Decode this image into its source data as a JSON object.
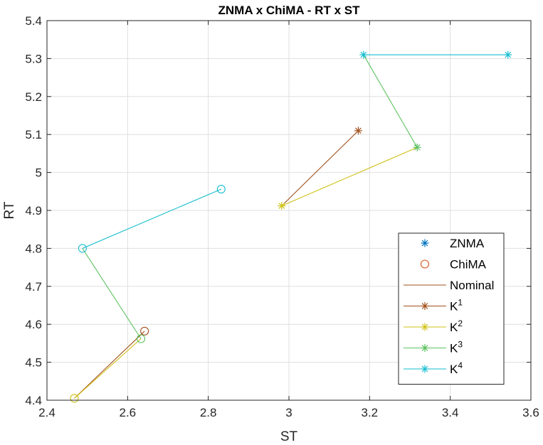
{
  "chart_data": {
    "type": "line",
    "title": "ZNMA x ChiMA - RT  x ST",
    "xlabel": "ST",
    "ylabel": "RT",
    "xlim": [
      2.4,
      3.6
    ],
    "ylim": [
      4.4,
      5.4
    ],
    "xticks": [
      2.4,
      2.6,
      2.8,
      3,
      3.2,
      3.4,
      3.6
    ],
    "xtick_labels": [
      "2.4",
      "2.6",
      "2.8",
      "3",
      "3.2",
      "3.4",
      "3.6"
    ],
    "yticks": [
      4.4,
      4.5,
      4.6,
      4.7,
      4.8,
      4.9,
      5,
      5.1,
      5.2,
      5.3,
      5.4
    ],
    "ytick_labels": [
      "4.4",
      "4.5",
      "4.6",
      "4.7",
      "4.8",
      "4.9",
      "5",
      "5.1",
      "5.2",
      "5.3",
      "5.4"
    ],
    "grid": true,
    "legend_position": "bottom-right",
    "legend": [
      {
        "label": "ZNMA",
        "sup": "",
        "marker": "star",
        "line": false,
        "color": "#0072BD"
      },
      {
        "label": "ChiMA",
        "sup": "",
        "marker": "circle",
        "line": false,
        "color": "#D95319"
      },
      {
        "label": "Nominal",
        "sup": "",
        "marker": "none",
        "line": true,
        "color": "#A2501C"
      },
      {
        "label": "K",
        "sup": "1",
        "marker": "star",
        "line": true,
        "color": "#A2501C"
      },
      {
        "label": "K",
        "sup": "2",
        "marker": "star",
        "line": true,
        "color": "#CFC016"
      },
      {
        "label": "K",
        "sup": "3",
        "marker": "star",
        "line": true,
        "color": "#5CC260"
      },
      {
        "label": "K",
        "sup": "4",
        "marker": "star",
        "line": true,
        "color": "#17BECF"
      }
    ],
    "segments": [
      {
        "series": "K1",
        "color": "#A2501C",
        "x": [
          2.982,
          3.172
        ],
        "y": [
          4.912,
          5.11
        ]
      },
      {
        "series": "K2",
        "color": "#CFC016",
        "x": [
          2.982,
          3.318
        ],
        "y": [
          4.912,
          5.066
        ]
      },
      {
        "series": "K3",
        "color": "#5CC260",
        "x": [
          3.318,
          3.185
        ],
        "y": [
          5.066,
          5.31
        ]
      },
      {
        "series": "K4",
        "color": "#17BECF",
        "x": [
          3.185,
          3.543
        ],
        "y": [
          5.31,
          5.31
        ]
      },
      {
        "series": "K1",
        "color": "#A2501C",
        "x": [
          2.468,
          2.642
        ],
        "y": [
          4.405,
          4.582
        ]
      },
      {
        "series": "K2",
        "color": "#CFC016",
        "x": [
          2.468,
          2.633
        ],
        "y": [
          4.405,
          4.562
        ]
      },
      {
        "series": "K3",
        "color": "#5CC260",
        "x": [
          2.633,
          2.488
        ],
        "y": [
          4.562,
          4.8
        ]
      },
      {
        "series": "K4",
        "color": "#17BECF",
        "x": [
          2.488,
          2.832
        ],
        "y": [
          4.8,
          4.956
        ]
      }
    ],
    "points": [
      {
        "method": "ZNMA",
        "marker": "star",
        "color": "#A2501C",
        "x": 3.172,
        "y": 5.11
      },
      {
        "method": "ZNMA",
        "marker": "star",
        "color": "#CFC016",
        "x": 2.982,
        "y": 4.912
      },
      {
        "method": "ZNMA",
        "marker": "star",
        "color": "#5CC260",
        "x": 3.318,
        "y": 5.066
      },
      {
        "method": "ZNMA",
        "marker": "star",
        "color": "#17BECF",
        "x": 3.185,
        "y": 5.31
      },
      {
        "method": "ZNMA",
        "marker": "star",
        "color": "#17BECF",
        "x": 3.543,
        "y": 5.31
      },
      {
        "method": "ChiMA",
        "marker": "circle",
        "color": "#A2501C",
        "x": 2.642,
        "y": 4.582
      },
      {
        "method": "ChiMA",
        "marker": "circle",
        "color": "#CFC016",
        "x": 2.468,
        "y": 4.405
      },
      {
        "method": "ChiMA",
        "marker": "circle",
        "color": "#5CC260",
        "x": 2.633,
        "y": 4.562
      },
      {
        "method": "ChiMA",
        "marker": "circle",
        "color": "#17BECF",
        "x": 2.488,
        "y": 4.8
      },
      {
        "method": "ChiMA",
        "marker": "circle",
        "color": "#17BECF",
        "x": 2.832,
        "y": 4.956
      }
    ]
  }
}
